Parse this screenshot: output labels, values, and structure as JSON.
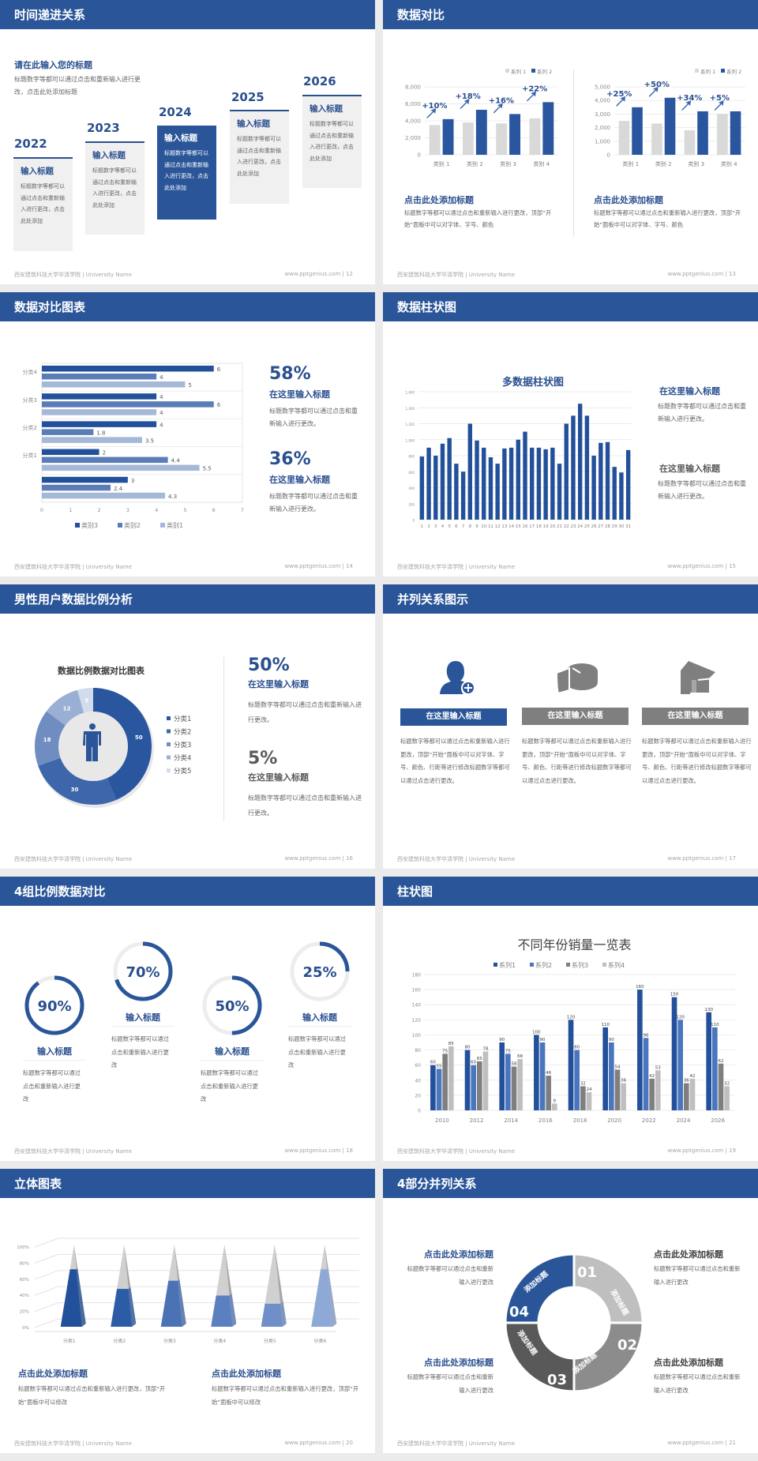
{
  "footer": {
    "left": "西安建筑科技大学华清学院 | University Name",
    "url": "www.pptgenius.com"
  },
  "colors": {
    "brand": "#2a5699",
    "dark_blue": "#22509a",
    "light_gray": "#d9d9d9",
    "gray": "#7f7f7f"
  },
  "s12": {
    "title": "时间递进关系",
    "page": "| 12",
    "heading": "请在此输入您的标题",
    "desc": "标题数字等都可以通过点击和重新输入进行更改，点击此处添加标题",
    "cards": [
      {
        "year": "2022",
        "title": "输入标题",
        "text": "标题数字等都可以通过点击和重新输入进行更改，点击此处添加"
      },
      {
        "year": "2023",
        "title": "输入标题",
        "text": "标题数字等都可以通过点击和重新输入进行更改，点击此处添加"
      },
      {
        "year": "2024",
        "title": "输入标题",
        "text": "标题数字等都可以通过点击和重新输入进行更改，点击此处添加"
      },
      {
        "year": "2025",
        "title": "输入标题",
        "text": "标题数字等都可以通过点击和重新输入进行更改，点击此处添加"
      },
      {
        "year": "2026",
        "title": "输入标题",
        "text": "标题数字等都可以通过点击和重新输入进行更改，点击此处添加"
      }
    ]
  },
  "s13": {
    "title": "数据对比",
    "page": "| 13",
    "blocks": [
      {
        "title": "点击此处添加标题",
        "text": "标题数字等都可以通过点击和重新输入进行更改，顶部“开始”面板中可以对字体、字号、颜色"
      },
      {
        "title": "点击此处添加标题",
        "text": "标题数字等都可以通过点击和重新输入进行更改，顶部“开始”面板中可以对字体、字号、颜色"
      }
    ]
  },
  "s14": {
    "title": "数据对比图表",
    "page": "| 14",
    "stats": [
      {
        "value": "58%",
        "title": "在这里输入标题",
        "text": "标题数字等都可以通过点击和重新输入进行更改。"
      },
      {
        "value": "36%",
        "title": "在这里输入标题",
        "text": "标题数字等都可以通过点击和重新输入进行更改。"
      }
    ]
  },
  "s15": {
    "title": "数据柱状图",
    "page": "| 15",
    "chart_title": "多数据柱状图",
    "blocks": [
      {
        "title": "在这里输入标题",
        "text": "标题数字等都可以通过点击和重新输入进行更改。"
      },
      {
        "title": "在这里输入标题",
        "text": "标题数字等都可以通过点击和重新输入进行更改。"
      }
    ]
  },
  "s16": {
    "title": "男性用户数据比例分析",
    "page": "| 16",
    "chart_title": "数据比例数据对比图表",
    "stats": [
      {
        "value": "50%",
        "title": "在这里输入标题",
        "text": "标题数字等都可以通过点击和重新输入进行更改。"
      },
      {
        "value": "5%",
        "title": "在这里输入标题",
        "text": "标题数字等都可以通过点击和重新输入进行更改。"
      }
    ]
  },
  "s17": {
    "title": "并列关系图示",
    "page": "| 17",
    "items": [
      {
        "icon": "user-add-icon",
        "label": "在这里输入标题",
        "text": "标题数字等都可以通过点击和重新输入进行更改，顶部“开始”面板中可以对字体、字号、颜色、行距等进行修改标题数字等都可以通过点击进行更改。"
      },
      {
        "icon": "pie-chart-icon",
        "label": "在这里输入标题",
        "text": "标题数字等都可以通过点击和重新输入进行更改，顶部“开始”面板中可以对字体、字号、颜色、行距等进行修改标题数字等都可以通过点击进行更改。"
      },
      {
        "icon": "shop-icon",
        "label": "在这里输入标题",
        "text": "标题数字等都可以通过点击和重新输入进行更改，顶部“开始”面板中可以对字体、字号、颜色、行距等进行修改标题数字等都可以通过点击进行更改。"
      }
    ]
  },
  "s18": {
    "title": "4组比例数据对比",
    "page": "| 18",
    "rings": [
      {
        "value": 90,
        "label": "90%",
        "title": "输入标题",
        "text": "标题数字等都可以通过点击和重新输入进行更改"
      },
      {
        "value": 70,
        "label": "70%",
        "title": "输入标题",
        "text": "标题数字等都可以通过点击和重新输入进行更改"
      },
      {
        "value": 50,
        "label": "50%",
        "title": "输入标题",
        "text": "标题数字等都可以通过点击和重新输入进行更改"
      },
      {
        "value": 25,
        "label": "25%",
        "title": "输入标题",
        "text": "标题数字等都可以通过点击和重新输入进行更改"
      }
    ]
  },
  "s19": {
    "title": "柱状图",
    "page": "| 19",
    "chart_title": "不同年份销量一览表"
  },
  "s20": {
    "title": "立体图表",
    "page": "| 20",
    "blocks": [
      {
        "title": "点击此处添加标题",
        "text": "标题数字等都可以通过点击和重新输入进行更改，顶部“开始”面板中可以修改"
      },
      {
        "title": "点击此处添加标题",
        "text": "标题数字等都可以通过点击和重新输入进行更改，顶部“开始”面板中可以修改"
      }
    ]
  },
  "s21": {
    "title": "4部分并列关系",
    "page": "| 21",
    "segments": [
      {
        "num": "01",
        "label": "添加标题",
        "color": "#bfbfbf"
      },
      {
        "num": "02",
        "label": "添加标题",
        "color": "#8c8c8c"
      },
      {
        "num": "03",
        "label": "添加标题",
        "color": "#595959"
      },
      {
        "num": "04",
        "label": "添加标题",
        "color": "#2a5699"
      }
    ],
    "blocks": [
      {
        "title": "点击此处添加标题",
        "text": "标题数字等都可以通过点击和重新输入进行更改"
      },
      {
        "title": "点击此处添加标题",
        "text": "标题数字等都可以通过点击和重新输入进行更改"
      },
      {
        "title": "点击此处添加标题",
        "text": "标题数字等都可以通过点击和重新输入进行更改"
      },
      {
        "title": "点击此处添加标题",
        "text": "标题数字等都可以通过点击和重新输入进行更改"
      }
    ]
  },
  "chart_data": [
    {
      "id": "c13a",
      "type": "bar",
      "categories": [
        "类别 1",
        "类别 2",
        "类别 3",
        "类别 4"
      ],
      "series": [
        {
          "name": "系列 1",
          "values": [
            3500,
            3800,
            3700,
            4300
          ],
          "color": "#d9d9d9"
        },
        {
          "name": "系列 2",
          "values": [
            4200,
            5300,
            4800,
            6200
          ],
          "color": "#2a56a0"
        }
      ],
      "annotations": [
        "+10%",
        "+18%",
        "+16%",
        "+22%"
      ],
      "ylim": [
        0,
        8000
      ],
      "yticks": [
        "0",
        "2,000",
        "4,000",
        "6,000",
        "8,000"
      ],
      "grid": true,
      "legend": "top-right"
    },
    {
      "id": "c13b",
      "type": "bar",
      "categories": [
        "类别 1",
        "类别 2",
        "类别 3",
        "类别 4"
      ],
      "series": [
        {
          "name": "系列 1",
          "values": [
            2500,
            2300,
            1800,
            3000
          ],
          "color": "#d9d9d9"
        },
        {
          "name": "系列 2",
          "values": [
            3500,
            4200,
            3200,
            3200
          ],
          "color": "#2a56a0"
        }
      ],
      "annotations": [
        "+25%",
        "+50%",
        "+34%",
        "+5%"
      ],
      "ylim": [
        0,
        5000
      ],
      "yticks": [
        "0",
        "1,000",
        "2,000",
        "3,000",
        "4,000",
        "5,000"
      ],
      "grid": true,
      "legend": "top-right"
    },
    {
      "id": "c14",
      "type": "bar",
      "orientation": "horizontal",
      "categories": [
        "分类4",
        "分类3",
        "分类2",
        "分类1",
        ""
      ],
      "series": [
        {
          "name": "类别3",
          "values": [
            6,
            4,
            4,
            2,
            3
          ],
          "color": "#22509a"
        },
        {
          "name": "类别2",
          "values": [
            4,
            6,
            1.8,
            4.4,
            2.4
          ],
          "color": "#5a7db8"
        },
        {
          "name": "类别1",
          "values": [
            5,
            4,
            3.5,
            5.5,
            4.3
          ],
          "color": "#a5b8d8"
        }
      ],
      "xlim": [
        0,
        7
      ],
      "xticks": [
        "0",
        "1",
        "2",
        "3",
        "4",
        "5",
        "6",
        "7"
      ],
      "grid": true,
      "legend": "bottom"
    },
    {
      "id": "c15",
      "type": "bar",
      "title": "多数据柱状图",
      "categories": [
        "1",
        "2",
        "3",
        "4",
        "5",
        "6",
        "7",
        "8",
        "9",
        "10",
        "11",
        "12",
        "13",
        "14",
        "15",
        "16",
        "17",
        "18",
        "19",
        "20",
        "21",
        "22",
        "23",
        "24",
        "25",
        "26",
        "27",
        "28",
        "29",
        "30",
        "31"
      ],
      "series": [
        {
          "values": [
            790,
            900,
            800,
            950,
            1020,
            700,
            600,
            1200,
            990,
            900,
            780,
            700,
            890,
            900,
            1000,
            1100,
            900,
            900,
            880,
            900,
            700,
            1200,
            1300,
            1450,
            1300,
            800,
            960,
            970,
            660,
            590,
            870
          ],
          "color": "#22509a"
        }
      ],
      "ylim": [
        0,
        1600
      ],
      "yticks": [
        "0",
        "200",
        "400",
        "600",
        "800",
        "1,000",
        "1,200",
        "1,400",
        "1,600"
      ],
      "grid": true
    },
    {
      "id": "c16",
      "type": "pie",
      "donut": true,
      "title": "数据比例数据对比图表",
      "categories": [
        "分类1",
        "分类2",
        "分类3",
        "分类4",
        "分类5"
      ],
      "values": [
        50,
        30,
        18,
        12,
        5
      ],
      "colors": [
        "#2a56a0",
        "#3d66ab",
        "#6f8dc0",
        "#9aafd4",
        "#d3dcec"
      ],
      "legend": "right"
    },
    {
      "id": "c19",
      "type": "bar",
      "title": "不同年份销量一览表",
      "categories": [
        "2010",
        "2012",
        "2014",
        "2016",
        "2018",
        "2020",
        "2022",
        "2024",
        "2026"
      ],
      "series": [
        {
          "name": "系列1",
          "values": [
            60,
            80,
            90,
            100,
            120,
            110,
            160,
            150,
            130
          ],
          "color": "#22509a"
        },
        {
          "name": "系列2",
          "values": [
            55,
            60,
            75,
            90,
            80,
            90,
            96,
            120,
            110
          ],
          "color": "#4a76bf"
        },
        {
          "name": "系列3",
          "values": [
            75,
            65,
            58,
            46,
            32,
            54,
            42,
            36,
            62
          ],
          "color": "#7f7f7f"
        },
        {
          "name": "系列4",
          "values": [
            85,
            78,
            68,
            9,
            24,
            36,
            53,
            42,
            32
          ],
          "color": "#bfbfbf"
        }
      ],
      "ylim": [
        0,
        180
      ],
      "yticks": [
        "0",
        "20",
        "40",
        "60",
        "80",
        "100",
        "120",
        "140",
        "160",
        "180"
      ],
      "grid": true,
      "legend": "top",
      "data_labels": true
    },
    {
      "id": "c20",
      "type": "bar",
      "style": "3d-pyramid",
      "categories": [
        "分类1",
        "分类2",
        "分类3",
        "分类4",
        "分类5",
        "分类6"
      ],
      "values": [
        70,
        46,
        56,
        38,
        28,
        70
      ],
      "colors": [
        "#22509a",
        "#2d5ca6",
        "#4a72b5",
        "#5a80bf",
        "#6e8fc8",
        "#8ea9d6"
      ],
      "ylim": [
        0,
        100
      ],
      "yticks": [
        "0%",
        "20%",
        "40%",
        "60%",
        "80%",
        "100%"
      ],
      "grid": true
    }
  ]
}
